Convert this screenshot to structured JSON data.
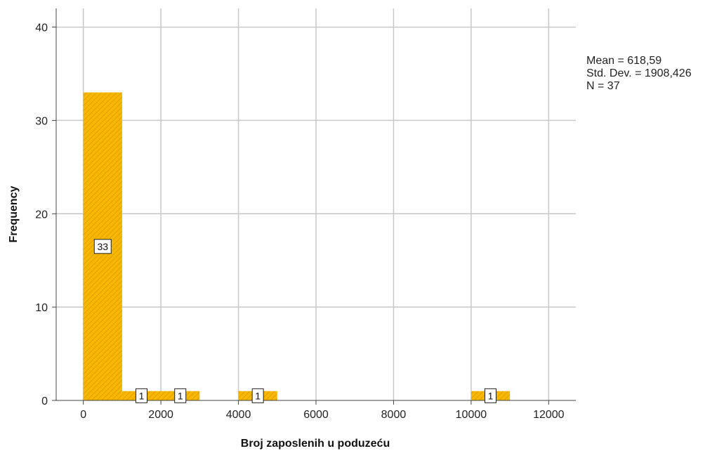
{
  "chart_data": {
    "type": "bar",
    "title": "",
    "xlabel": "Broj zaposlenih u poduzeću",
    "ylabel": "Frequency",
    "bin_width": 1000,
    "bins": [
      {
        "start": 0,
        "end": 1000,
        "count": 33,
        "label": "33"
      },
      {
        "start": 1000,
        "end": 2000,
        "count": 1,
        "label": "1"
      },
      {
        "start": 2000,
        "end": 3000,
        "count": 1,
        "label": "1"
      },
      {
        "start": 4000,
        "end": 5000,
        "count": 1,
        "label": "1"
      },
      {
        "start": 10000,
        "end": 11000,
        "count": 1,
        "label": "1"
      }
    ],
    "xlim": [
      -700,
      12700
    ],
    "ylim": [
      0,
      42
    ],
    "x_ticks": [
      0,
      2000,
      4000,
      6000,
      8000,
      10000,
      12000
    ],
    "y_ticks": [
      0,
      10,
      20,
      30,
      40
    ],
    "grid": true,
    "bar_color": "#F5B800",
    "bar_hatch_color": "#E89A00",
    "stats": {
      "mean": "Mean = 618,59",
      "std_dev": "Std. Dev. = 1908,426",
      "n": "N = 37"
    }
  }
}
